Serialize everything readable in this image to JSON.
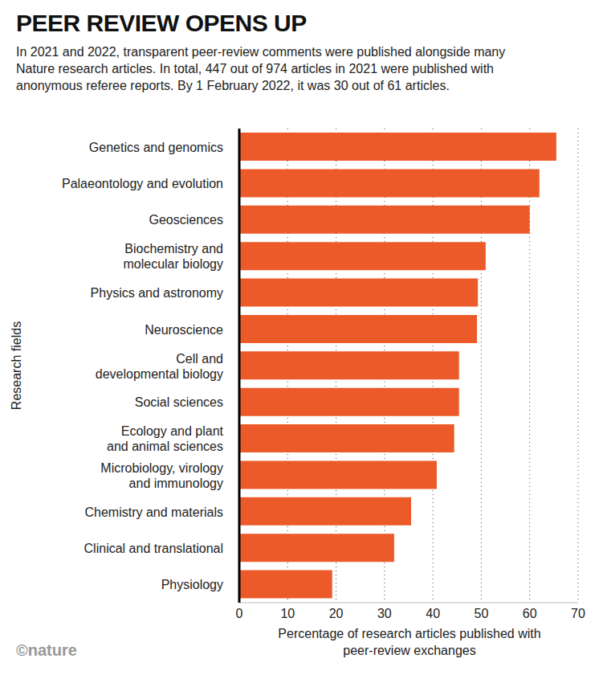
{
  "chart_data": {
    "type": "bar",
    "title": "PEER REVIEW OPENS UP",
    "subtitle": "In 2021 and 2022, transparent peer-review comments were published alongside many Nature research articles. In total, 447 out of 974 articles in 2021 were published with anonymous referee reports. By 1 February 2022, it was 30 out of 61 articles.",
    "source": "©nature",
    "x_label": "Percentage of research articles published with peer-review exchanges",
    "y_label": "Research fields",
    "orientation": "horizontal",
    "categories": [
      "Genetics and genomics",
      "Palaeontology and evolution",
      "Geosciences",
      "Biochemistry and molecular biology",
      "Physics and astronomy",
      "Neuroscience",
      "Cell and developmental biology",
      "Social sciences",
      "Ecology and plant and animal sciences",
      "Microbiology, virology and immunology",
      "Chemistry and materials",
      "Clinical and translational",
      "Physiology"
    ],
    "values": [
      65.5,
      62.0,
      60.0,
      50.9,
      49.3,
      49.1,
      45.4,
      45.4,
      44.4,
      40.8,
      35.5,
      32.0,
      19.2
    ],
    "color": "#ec5a29",
    "xlim": [
      0,
      70
    ],
    "xticks": [
      0,
      10,
      20,
      30,
      40,
      50,
      60,
      70
    ],
    "grid": true
  }
}
